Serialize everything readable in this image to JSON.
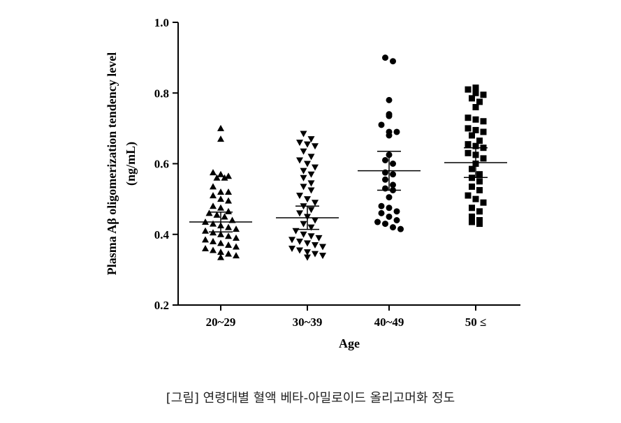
{
  "caption": "[그림] 연령대별 혈액 베타-아밀로이드 올리고머화 정도",
  "chart_data": {
    "type": "scatter",
    "ylabel_line1": "Plasma Aβ  oligomerization tendency level",
    "ylabel_line2": "(ng/mL)",
    "xlabel": "Age",
    "ylim": [
      0.2,
      1.0
    ],
    "yticks": [
      "0.2",
      "0.4",
      "0.6",
      "0.8",
      "1.0"
    ],
    "categories": [
      "20~29",
      "30~39",
      "40~49",
      "50 ≤"
    ],
    "series": [
      {
        "category": "20~29",
        "marker": "triangle-up",
        "mean": 0.435,
        "sem_upper": 0.463,
        "sem_lower": 0.407,
        "values": [
          0.7,
          0.67,
          0.575,
          0.57,
          0.565,
          0.56,
          0.56,
          0.535,
          0.52,
          0.52,
          0.51,
          0.5,
          0.495,
          0.48,
          0.475,
          0.465,
          0.46,
          0.455,
          0.45,
          0.44,
          0.435,
          0.43,
          0.425,
          0.42,
          0.415,
          0.41,
          0.405,
          0.4,
          0.395,
          0.39,
          0.385,
          0.38,
          0.375,
          0.37,
          0.365,
          0.36,
          0.355,
          0.35,
          0.345,
          0.34,
          0.335
        ]
      },
      {
        "category": "30~39",
        "marker": "triangle-down",
        "mean": 0.447,
        "sem_upper": 0.48,
        "sem_lower": 0.414,
        "values": [
          0.685,
          0.67,
          0.66,
          0.655,
          0.65,
          0.635,
          0.62,
          0.61,
          0.6,
          0.59,
          0.58,
          0.57,
          0.56,
          0.545,
          0.535,
          0.525,
          0.51,
          0.5,
          0.49,
          0.48,
          0.47,
          0.46,
          0.45,
          0.44,
          0.43,
          0.42,
          0.41,
          0.4,
          0.395,
          0.39,
          0.385,
          0.38,
          0.375,
          0.37,
          0.365,
          0.36,
          0.355,
          0.35,
          0.345,
          0.34,
          0.335
        ]
      },
      {
        "category": "40~49",
        "marker": "circle",
        "mean": 0.58,
        "sem_upper": 0.635,
        "sem_lower": 0.525,
        "values": [
          0.9,
          0.89,
          0.78,
          0.74,
          0.735,
          0.71,
          0.69,
          0.69,
          0.68,
          0.625,
          0.61,
          0.6,
          0.575,
          0.57,
          0.555,
          0.54,
          0.53,
          0.525,
          0.505,
          0.48,
          0.475,
          0.465,
          0.46,
          0.45,
          0.44,
          0.435,
          0.43,
          0.42,
          0.415
        ]
      },
      {
        "category": "50 ≤",
        "marker": "square",
        "mean": 0.603,
        "sem_upper": 0.645,
        "sem_lower": 0.561,
        "values": [
          0.815,
          0.81,
          0.8,
          0.795,
          0.785,
          0.775,
          0.76,
          0.73,
          0.725,
          0.72,
          0.7,
          0.695,
          0.69,
          0.68,
          0.665,
          0.655,
          0.65,
          0.645,
          0.63,
          0.625,
          0.615,
          0.6,
          0.585,
          0.57,
          0.56,
          0.55,
          0.535,
          0.525,
          0.51,
          0.5,
          0.49,
          0.475,
          0.465,
          0.45,
          0.44,
          0.435,
          0.43
        ]
      }
    ]
  }
}
